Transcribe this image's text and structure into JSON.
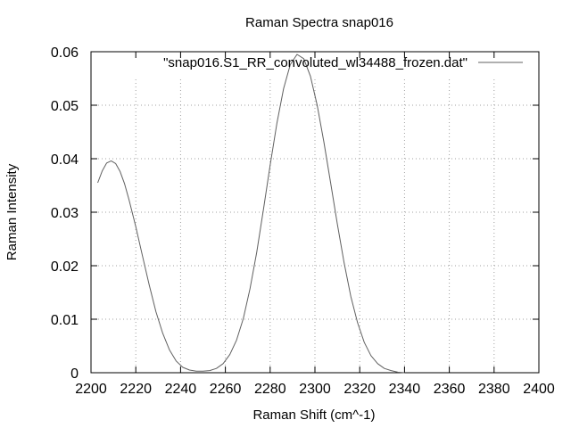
{
  "chart_data": {
    "type": "line",
    "title": "Raman Spectra snap016",
    "xlabel": "Raman Shift (cm^-1)",
    "ylabel": "Raman Intensity",
    "xlim": [
      2200,
      2400
    ],
    "ylim": [
      0,
      0.06
    ],
    "x_ticks": [
      "2200",
      "2220",
      "2240",
      "2260",
      "2280",
      "2300",
      "2320",
      "2340",
      "2360",
      "2380",
      "2400"
    ],
    "y_ticks": [
      "0",
      "0.01",
      "0.02",
      "0.03",
      "0.04",
      "0.05",
      "0.06"
    ],
    "grid": true,
    "legend_position": "top-right",
    "series": [
      {
        "name": "\"snap016.S1_RR_convoluted_wl34488_frozen.dat\"",
        "color": "#606060",
        "x": [
          2203,
          2205,
          2207,
          2209,
          2211,
          2213,
          2215,
          2217,
          2220,
          2223,
          2226,
          2229,
          2232,
          2235,
          2238,
          2241,
          2244,
          2247,
          2250,
          2253,
          2256,
          2259,
          2262,
          2265,
          2268,
          2271,
          2274,
          2277,
          2280,
          2283,
          2286,
          2289,
          2292,
          2295,
          2298,
          2301,
          2304,
          2307,
          2310,
          2313,
          2316,
          2319,
          2322,
          2325,
          2328,
          2331,
          2334,
          2337,
          2340
        ],
        "y": [
          0.0355,
          0.0377,
          0.0392,
          0.0396,
          0.0391,
          0.0376,
          0.0353,
          0.0323,
          0.0273,
          0.0218,
          0.0164,
          0.0114,
          0.0074,
          0.0043,
          0.0022,
          0.001,
          0.0005,
          0.0003,
          0.0003,
          0.0004,
          0.0008,
          0.0017,
          0.0034,
          0.0061,
          0.0101,
          0.0157,
          0.0225,
          0.0305,
          0.0388,
          0.0466,
          0.0531,
          0.0576,
          0.0595,
          0.0587,
          0.0554,
          0.05,
          0.0431,
          0.0355,
          0.0278,
          0.0206,
          0.0143,
          0.0094,
          0.0057,
          0.0032,
          0.0017,
          0.0008,
          0.0004,
          0.0001,
          0.0
        ]
      }
    ]
  }
}
